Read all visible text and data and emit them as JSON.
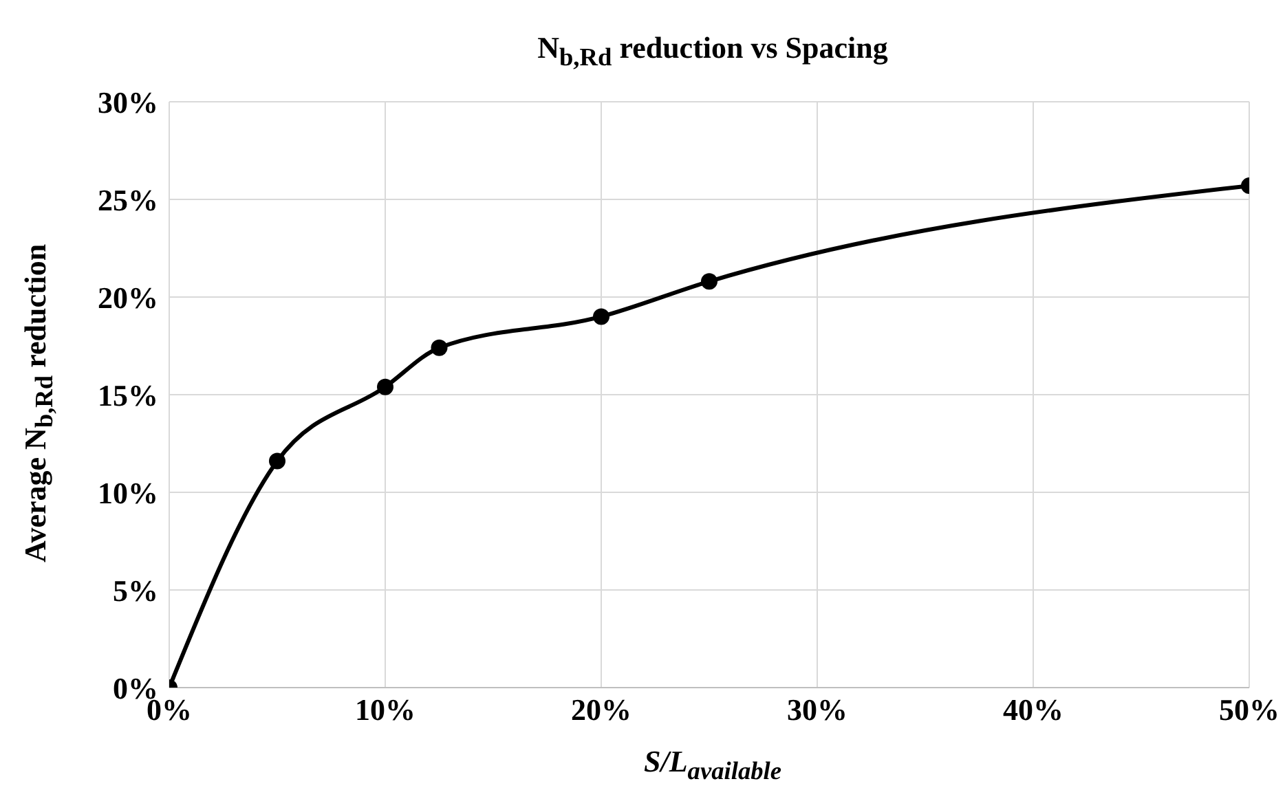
{
  "chart_data": {
    "type": "line",
    "title": "N$_{b,Rd}$ reduction vs Spacing",
    "xlabel": "S/L$_{available}$",
    "ylabel": "Average N$_{b,Rd}$ reduction",
    "x": [
      0,
      5,
      10,
      12.5,
      20,
      25,
      50
    ],
    "series": [
      {
        "color": "#000000",
        "values": [
          0,
          11.6,
          15.4,
          17.4,
          19.0,
          20.8,
          25.7
        ]
      }
    ],
    "xlim": [
      0,
      50
    ],
    "xticks": [
      {
        "value": 0,
        "label": "0%"
      },
      {
        "value": 10,
        "label": "10%"
      },
      {
        "value": 20,
        "label": "20%"
      },
      {
        "value": 30,
        "label": "30%"
      },
      {
        "value": 40,
        "label": "40%"
      },
      {
        "value": 50,
        "label": "50%"
      }
    ],
    "ylim": [
      0,
      30
    ],
    "yticks": [
      {
        "value": 0,
        "label": "0%"
      },
      {
        "value": 5,
        "label": "5%"
      },
      {
        "value": 10,
        "label": "10%"
      },
      {
        "value": 15,
        "label": "15%"
      },
      {
        "value": 20,
        "label": "20%"
      },
      {
        "value": 25,
        "label": "25%"
      },
      {
        "value": 30,
        "label": "30%"
      }
    ],
    "grid": true,
    "marker": "circle",
    "line_style": "solid",
    "legend": false
  }
}
